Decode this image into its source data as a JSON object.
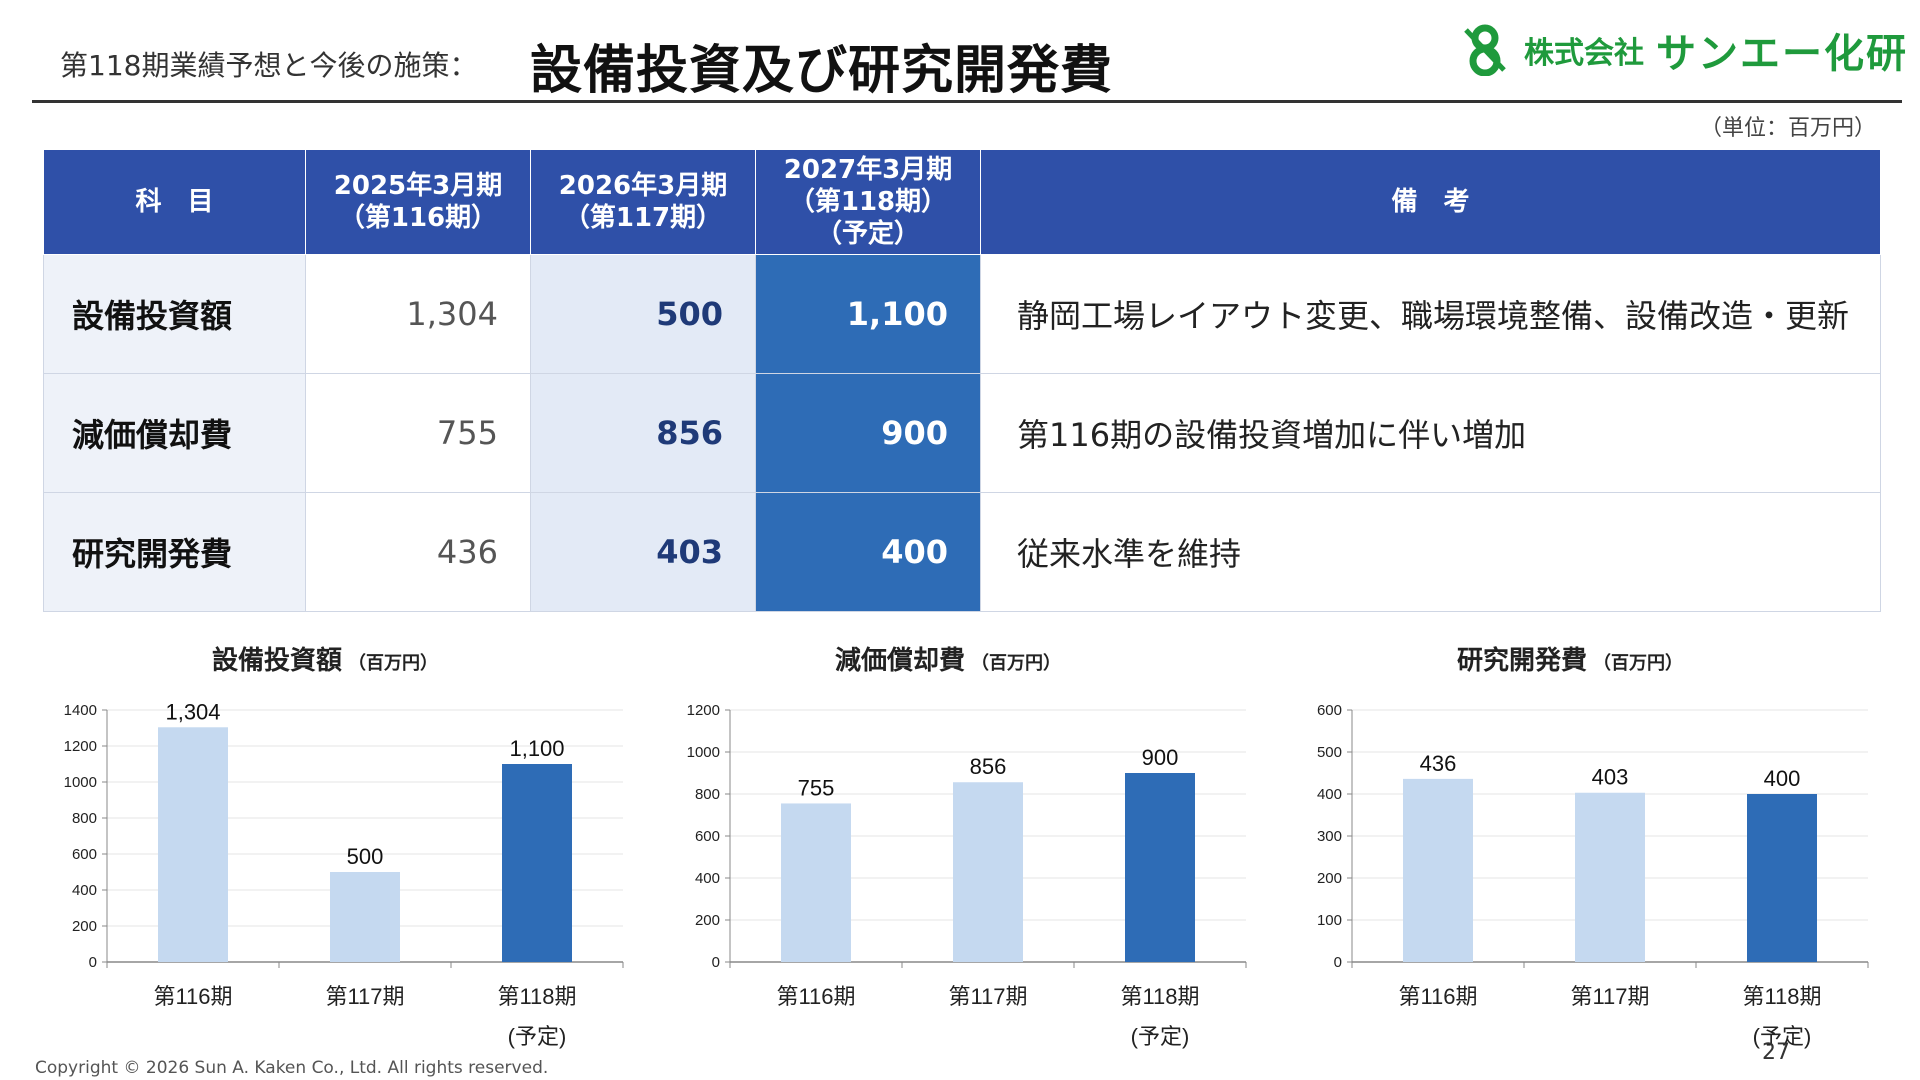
{
  "header": {
    "subtitle": "第118期業績予想と今後の施策：",
    "title": "設備投資及び研究開発費",
    "logo_small": "株式会社",
    "logo_big": "サンエー化研"
  },
  "unit_note": "（単位：百万円）",
  "table": {
    "headers": {
      "item": "科　目",
      "col1_l1": "2025年3月期",
      "col1_l2": "（第116期）",
      "col2_l1": "2026年3月期",
      "col2_l2": "（第117期）",
      "col3_l1": "2027年3月期",
      "col3_l2": "（第118期）",
      "col3_l3": "（予定）",
      "note": "備　考"
    },
    "rows": [
      {
        "label": "設備投資額",
        "v1": "1,304",
        "v2": "500",
        "v3": "1,100",
        "note": "静岡工場レイアウト変更、職場環境整備、設備改造・更新"
      },
      {
        "label": "減価償却費",
        "v1": "755",
        "v2": "856",
        "v3": "900",
        "note": "第116期の設備投資増加に伴い増加"
      },
      {
        "label": "研究開発費",
        "v1": "436",
        "v2": "403",
        "v3": "400",
        "note": "従来水準を維持"
      }
    ]
  },
  "colors": {
    "header_blue": "#2f50a8",
    "highlight_blue": "#2e6cb6",
    "light_bar": "#c5d9f0",
    "dark_bar": "#2e6cb6",
    "logo_green": "#1f9a3c"
  },
  "chart_data": [
    {
      "type": "bar",
      "title": "設備投資額",
      "unit": "（百万円）",
      "categories": [
        "第116期",
        "第117期",
        "第118期"
      ],
      "category_sub": [
        "",
        "",
        "(予定)"
      ],
      "values": [
        1304,
        500,
        1100
      ],
      "value_labels": [
        "1,304",
        "500",
        "1,100"
      ],
      "ylim": [
        0,
        1400
      ],
      "yticks": [
        0,
        200,
        400,
        600,
        800,
        1000,
        1200,
        1400
      ],
      "highlight_index": 2,
      "grid": true
    },
    {
      "type": "bar",
      "title": "減価償却費",
      "unit": "（百万円）",
      "categories": [
        "第116期",
        "第117期",
        "第118期"
      ],
      "category_sub": [
        "",
        "",
        "(予定)"
      ],
      "values": [
        755,
        856,
        900
      ],
      "value_labels": [
        "755",
        "856",
        "900"
      ],
      "ylim": [
        0,
        1200
      ],
      "yticks": [
        0,
        200,
        400,
        600,
        800,
        1000,
        1200
      ],
      "highlight_index": 2,
      "grid": true
    },
    {
      "type": "bar",
      "title": "研究開発費",
      "unit": "（百万円）",
      "categories": [
        "第116期",
        "第117期",
        "第118期"
      ],
      "category_sub": [
        "",
        "",
        "(予定)"
      ],
      "values": [
        436,
        403,
        400
      ],
      "value_labels": [
        "436",
        "403",
        "400"
      ],
      "ylim": [
        0,
        600
      ],
      "yticks": [
        0,
        100,
        200,
        300,
        400,
        500,
        600
      ],
      "highlight_index": 2,
      "grid": true
    }
  ],
  "footer": {
    "copyright": "Copyright  © 2026 Sun A. Kaken Co., Ltd. All rights reserved.",
    "page_number": "27"
  }
}
